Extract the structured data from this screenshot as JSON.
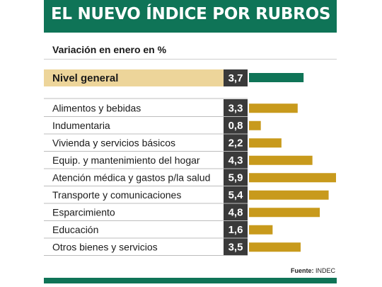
{
  "header": {
    "title": "EL NUEVO ÍNDICE POR RUBROS",
    "subtitle": "Variación en enero en %"
  },
  "footer": {
    "source_label": "Fuente:",
    "source_value": "INDEC"
  },
  "colors": {
    "brand_green": "#0f7457",
    "bar_gold": "#c89a1c",
    "highlight_band": "#edd59a",
    "value_box": "#3a3a3a"
  },
  "chart_data": {
    "type": "bar",
    "orientation": "horizontal",
    "highlight": {
      "category": "Nivel general",
      "value": 3.7,
      "value_label": "3,7"
    },
    "categories": [
      "Alimentos y bebidas",
      "Indumentaria",
      "Vivienda y servicios básicos",
      "Equip. y mantenimiento del hogar",
      "Atención médica y gastos p/la salud",
      "Transporte y comunicaciones",
      "Esparcimiento",
      "Educación",
      "Otros bienes y servicios"
    ],
    "values": [
      3.3,
      0.8,
      2.2,
      4.3,
      5.9,
      5.4,
      4.8,
      1.6,
      3.5
    ],
    "value_labels": [
      "3,3",
      "0,8",
      "2,2",
      "4,3",
      "5,9",
      "5,4",
      "4,8",
      "1,6",
      "3,5"
    ]
  }
}
